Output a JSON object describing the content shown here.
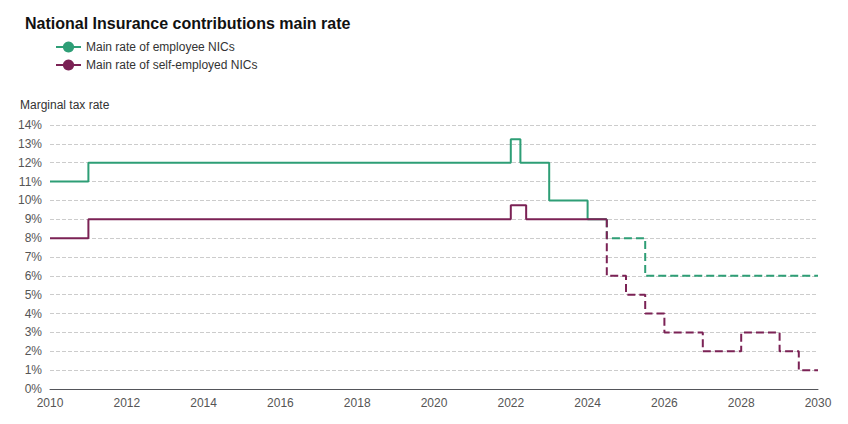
{
  "chart_data": {
    "type": "line",
    "title": "National Insurance contributions main rate",
    "ylabel": "Marginal tax rate",
    "series": [
      {
        "name": "Main rate of employee NICs",
        "color": "#2e9e76",
        "line_style": "solid",
        "x": [
          2010,
          2011,
          2011,
          2022,
          2022,
          2022.25,
          2022.25,
          2023,
          2023,
          2024,
          2024,
          2024.5
        ],
        "values": [
          11,
          11,
          12,
          12,
          13.25,
          13.25,
          12,
          12,
          10,
          10,
          9,
          9
        ]
      },
      {
        "name": "Main rate of employee NICs",
        "color": "#2e9e76",
        "line_style": "dashed",
        "x": [
          2024.5,
          2024.5,
          2025.5,
          2025.5,
          2030
        ],
        "values": [
          9,
          8,
          8,
          6,
          6
        ]
      },
      {
        "name": "Main rate of self-employed NICs",
        "color": "#7b2255",
        "line_style": "solid",
        "x": [
          2010,
          2011,
          2011,
          2022,
          2022,
          2022.4,
          2022.4,
          2023,
          2023,
          2024.5
        ],
        "values": [
          8,
          8,
          9,
          9,
          9.75,
          9.75,
          9,
          9,
          9,
          9
        ]
      },
      {
        "name": "Main rate of self-employed NICs",
        "color": "#7b2255",
        "line_style": "dashed",
        "x": [
          2024.5,
          2024.5,
          2025,
          2025,
          2025.5,
          2025.5,
          2026,
          2026,
          2027,
          2027,
          2027.5,
          2027.5,
          2028,
          2028,
          2029,
          2029,
          2029.5,
          2029.5,
          2030
        ],
        "values": [
          9,
          6,
          6,
          5,
          5,
          4,
          4,
          3,
          3,
          2,
          2,
          2,
          2,
          3,
          3,
          2,
          2,
          1,
          1
        ]
      }
    ],
    "xlim": [
      2010,
      2030
    ],
    "xticks": [
      2010,
      2012,
      2014,
      2016,
      2018,
      2020,
      2022,
      2024,
      2026,
      2028,
      2030
    ],
    "ylim": [
      0,
      14
    ],
    "yticks": [
      {
        "value": 0,
        "label": "0%"
      },
      {
        "value": 1,
        "label": "1%"
      },
      {
        "value": 2,
        "label": "2%"
      },
      {
        "value": 3,
        "label": "3%"
      },
      {
        "value": 4,
        "label": "4%"
      },
      {
        "value": 5,
        "label": "5%"
      },
      {
        "value": 6,
        "label": "6%"
      },
      {
        "value": 7,
        "label": "7%"
      },
      {
        "value": 8,
        "label": "8%"
      },
      {
        "value": 9,
        "label": "9%"
      },
      {
        "value": 10,
        "label": "10%"
      },
      {
        "value": 11,
        "label": "11%"
      },
      {
        "value": 12,
        "label": "12%"
      },
      {
        "value": 13,
        "label": "13%"
      },
      {
        "value": 14,
        "label": "14%"
      }
    ],
    "grid": true,
    "legend": "upper left"
  }
}
